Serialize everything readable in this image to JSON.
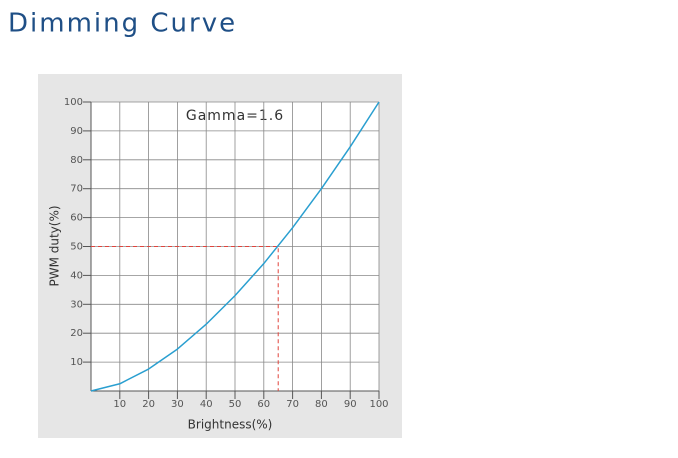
{
  "chart_data": {
    "type": "line",
    "title": "Dimming Curve",
    "annotation": "Gamma=1.6",
    "x_label": "Brightness(%)",
    "y_label": "PWM duty(%)",
    "x": [
      0,
      10,
      20,
      30,
      40,
      50,
      60,
      70,
      80,
      90,
      100
    ],
    "series": [
      {
        "name": "Gamma=1.6",
        "color": "#2a9fd0",
        "values": [
          0,
          2.5,
          7.6,
          14.5,
          23.1,
          33.0,
          44.1,
          56.5,
          70.0,
          84.5,
          100
        ]
      }
    ],
    "reference": {
      "x": 65,
      "y": 50,
      "color": "#e0443c"
    },
    "xlim": [
      0,
      100
    ],
    "ylim": [
      0,
      100
    ],
    "xticks": [
      10,
      20,
      30,
      40,
      50,
      60,
      70,
      80,
      90,
      100
    ],
    "yticks": [
      10,
      20,
      30,
      40,
      50,
      60,
      70,
      80,
      90,
      100
    ],
    "grid": true
  }
}
